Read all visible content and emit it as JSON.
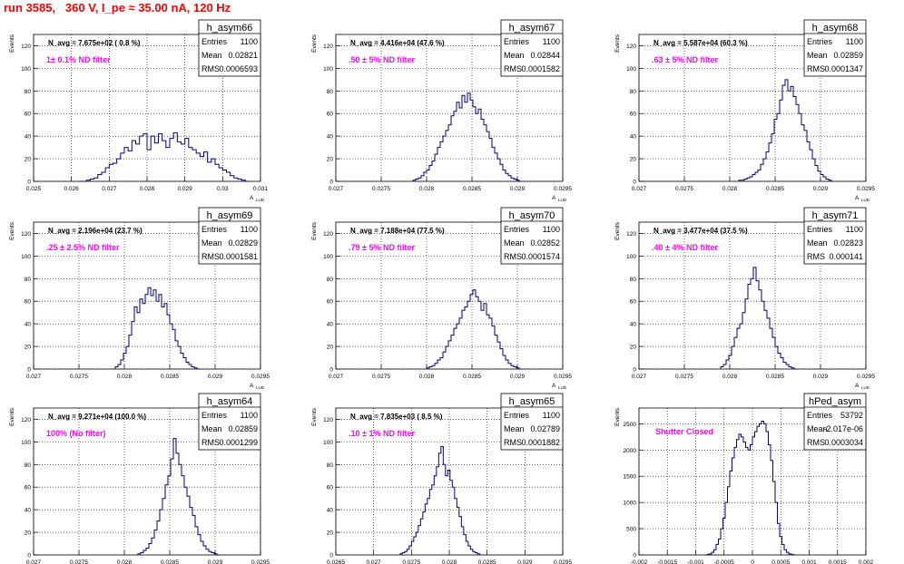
{
  "title": "run 3585,   360 V, I_pe ≈ 35.00 nA, 120 Hz",
  "colors": {
    "title": "#ff0000",
    "histogram": "#000080",
    "annotation": "#ff00ff",
    "grid": "#000000"
  },
  "stat_labels": {
    "entries": "Entries",
    "mean": "Mean",
    "rms": "RMS"
  },
  "axis_labels": {
    "y": "Events",
    "x": "A",
    "x_sub": "LUD"
  },
  "chart_data": [
    {
      "type": "bar",
      "name": "h_asym66",
      "navg": "N_avg = 7.675e+02 ( 0.8 %)",
      "filter": "1± 0.1% ND filter",
      "entries": "1100",
      "mean": "0.02821",
      "rms": "0.0006593",
      "xlim": [
        0.025,
        0.031
      ],
      "ylim": [
        0,
        130
      ],
      "xticks": [
        0.025,
        0.026,
        0.027,
        0.028,
        0.029,
        0.03,
        0.031
      ],
      "xticklabels": [
        "0.025",
        "0.026",
        "0.027",
        "0.028",
        "0.029",
        "0.03",
        "0.031"
      ],
      "yticks": [
        0,
        20,
        40,
        60,
        80,
        100,
        120
      ],
      "yticklabels": [
        "0",
        "20",
        "40",
        "60",
        "80",
        "100",
        "120"
      ],
      "bin_start": 0.0262,
      "bin_width": 0.0001,
      "values": [
        0,
        0,
        1,
        2,
        3,
        6,
        8,
        12,
        15,
        16,
        20,
        25,
        30,
        27,
        36,
        33,
        40,
        42,
        28,
        40,
        34,
        42,
        36,
        30,
        38,
        43,
        35,
        33,
        38,
        30,
        28,
        25,
        22,
        26,
        17,
        20,
        15,
        12,
        10,
        8,
        5,
        3,
        2,
        1,
        0
      ]
    },
    {
      "type": "bar",
      "name": "h_asym67",
      "navg": "N_avg = 4.416e+04 (47.6 %)",
      "filter": ".50 ± 5% ND filter",
      "entries": "1100",
      "mean": "0.02844",
      "rms": "0.0001582",
      "xlim": [
        0.027,
        0.0295
      ],
      "ylim": [
        0,
        130
      ],
      "xticks": [
        0.027,
        0.0275,
        0.028,
        0.0285,
        0.029,
        0.0295
      ],
      "xticklabels": [
        "0.027",
        "0.0275",
        "0.028",
        "0.0285",
        "0.029",
        "0.0295"
      ],
      "yticks": [
        0,
        20,
        40,
        60,
        80,
        100,
        120
      ],
      "yticklabels": [
        "0",
        "20",
        "40",
        "60",
        "80",
        "100",
        "120"
      ],
      "bin_start": 0.02785,
      "bin_width": 3e-05,
      "values": [
        1,
        2,
        3,
        5,
        8,
        10,
        14,
        18,
        24,
        30,
        35,
        40,
        45,
        50,
        58,
        62,
        70,
        65,
        76,
        70,
        78,
        72,
        66,
        60,
        64,
        55,
        50,
        44,
        38,
        30,
        25,
        20,
        15,
        10,
        7,
        5,
        3,
        2,
        1,
        0
      ]
    },
    {
      "type": "bar",
      "name": "h_asym68",
      "navg": "N_avg = 5.587e+04 (60.3 %)",
      "filter": ".63 ± 5% ND filter",
      "entries": "1100",
      "mean": "0.02859",
      "rms": "0.0001347",
      "xlim": [
        0.027,
        0.0295
      ],
      "ylim": [
        0,
        130
      ],
      "xticks": [
        0.027,
        0.0275,
        0.028,
        0.0285,
        0.029,
        0.0295
      ],
      "xticklabels": [
        "0.027",
        "0.0275",
        "0.028",
        "0.0285",
        "0.029",
        "0.0295"
      ],
      "yticks": [
        0,
        20,
        40,
        60,
        80,
        100,
        120
      ],
      "yticklabels": [
        "0",
        "20",
        "40",
        "60",
        "80",
        "100",
        "120"
      ],
      "bin_start": 0.0281,
      "bin_width": 3e-05,
      "values": [
        1,
        1,
        2,
        3,
        4,
        6,
        8,
        10,
        15,
        20,
        26,
        34,
        42,
        55,
        60,
        72,
        85,
        90,
        80,
        84,
        75,
        68,
        60,
        50,
        45,
        35,
        28,
        20,
        14,
        9,
        6,
        4,
        2,
        1,
        0
      ]
    },
    {
      "type": "bar",
      "name": "h_asym69",
      "navg": "N_avg = 2.196e+04 (23.7 %)",
      "filter": ".25 ± 2.5% ND filter",
      "entries": "1100",
      "mean": "0.02829",
      "rms": "0.0001581",
      "xlim": [
        0.027,
        0.0295
      ],
      "ylim": [
        0,
        130
      ],
      "xticks": [
        0.027,
        0.0275,
        0.028,
        0.0285,
        0.029,
        0.0295
      ],
      "xticklabels": [
        "0.027",
        "0.0275",
        "0.028",
        "0.0285",
        "0.029",
        "0.0295"
      ],
      "yticks": [
        0,
        20,
        40,
        60,
        80,
        100,
        120
      ],
      "yticklabels": [
        "0",
        "20",
        "40",
        "60",
        "80",
        "100",
        "120"
      ],
      "bin_start": 0.0279,
      "bin_width": 3e-05,
      "values": [
        2,
        4,
        8,
        14,
        20,
        30,
        42,
        55,
        50,
        62,
        58,
        66,
        72,
        65,
        70,
        60,
        66,
        55,
        58,
        48,
        40,
        35,
        25,
        20,
        14,
        10,
        6,
        4,
        2,
        1,
        0
      ]
    },
    {
      "type": "bar",
      "name": "h_asym70",
      "navg": "N_avg = 7.188e+04 (77.5 %)",
      "filter": ".79 ± 5% ND filter",
      "entries": "1100",
      "mean": "0.02852",
      "rms": "0.0001574",
      "xlim": [
        0.027,
        0.0295
      ],
      "ylim": [
        0,
        130
      ],
      "xticks": [
        0.027,
        0.0275,
        0.028,
        0.0285,
        0.029,
        0.0295
      ],
      "xticklabels": [
        "0.027",
        "0.0275",
        "0.028",
        "0.0285",
        "0.029",
        "0.0295"
      ],
      "yticks": [
        0,
        20,
        40,
        60,
        80,
        100,
        120
      ],
      "yticklabels": [
        "0",
        "20",
        "40",
        "60",
        "80",
        "100",
        "120"
      ],
      "bin_start": 0.028,
      "bin_width": 3e-05,
      "values": [
        1,
        2,
        3,
        5,
        8,
        10,
        15,
        20,
        25,
        30,
        36,
        40,
        45,
        52,
        55,
        60,
        66,
        70,
        64,
        60,
        52,
        58,
        48,
        45,
        38,
        30,
        24,
        18,
        12,
        8,
        5,
        3,
        2,
        1,
        0
      ]
    },
    {
      "type": "bar",
      "name": "h_asym71",
      "navg": "N_avg = 3.477e+04 (37.5 %)",
      "filter": ".40 ± 4% ND filter",
      "entries": "1100",
      "mean": "0.02823",
      "rms": "0.000141",
      "xlim": [
        0.027,
        0.0295
      ],
      "ylim": [
        0,
        130
      ],
      "xticks": [
        0.027,
        0.0275,
        0.028,
        0.0285,
        0.029,
        0.0295
      ],
      "xticklabels": [
        "0.027",
        "0.0275",
        "0.028",
        "0.0285",
        "0.029",
        "0.0295"
      ],
      "yticks": [
        0,
        20,
        40,
        60,
        80,
        100,
        120
      ],
      "yticklabels": [
        "0",
        "20",
        "40",
        "60",
        "80",
        "100",
        "120"
      ],
      "bin_start": 0.0279,
      "bin_width": 3e-05,
      "values": [
        2,
        4,
        8,
        12,
        20,
        28,
        36,
        40,
        50,
        62,
        75,
        80,
        90,
        78,
        70,
        60,
        52,
        45,
        36,
        28,
        20,
        14,
        10,
        6,
        4,
        2,
        1,
        0
      ]
    },
    {
      "type": "bar",
      "name": "h_asym64",
      "navg": "N_avg = 9.271e+04 (100.0 %)",
      "filter": "100% (No filter)",
      "entries": "1100",
      "mean": "0.02859",
      "rms": "0.0001299",
      "xlim": [
        0.027,
        0.0295
      ],
      "ylim": [
        0,
        130
      ],
      "xticks": [
        0.027,
        0.0275,
        0.028,
        0.0285,
        0.029,
        0.0295
      ],
      "xticklabels": [
        "0.027",
        "0.0275",
        "0.028",
        "0.0285",
        "0.029",
        "0.0295"
      ],
      "yticks": [
        0,
        20,
        40,
        60,
        80,
        100,
        120
      ],
      "yticklabels": [
        "0",
        "20",
        "40",
        "60",
        "80",
        "100",
        "120"
      ],
      "bin_start": 0.02815,
      "bin_width": 3e-05,
      "values": [
        1,
        2,
        4,
        6,
        10,
        15,
        22,
        30,
        40,
        50,
        62,
        70,
        85,
        103,
        90,
        80,
        70,
        60,
        52,
        42,
        35,
        25,
        18,
        12,
        8,
        5,
        3,
        2,
        1,
        0
      ]
    },
    {
      "type": "bar",
      "name": "h_asym65",
      "navg": "N_avg = 7.835e+03 ( 8.5 %)",
      "filter": ".10 ± 1% ND filter",
      "entries": "1100",
      "mean": "0.02789",
      "rms": "0.0001882",
      "xlim": [
        0.0265,
        0.0295
      ],
      "ylim": [
        0,
        130
      ],
      "xticks": [
        0.0265,
        0.027,
        0.0275,
        0.028,
        0.0285,
        0.029,
        0.0295
      ],
      "xticklabels": [
        "0.0265",
        "0.027",
        "0.0275",
        "0.028",
        "0.0285",
        "0.029",
        "0.0295"
      ],
      "yticks": [
        0,
        20,
        40,
        60,
        80,
        100,
        120
      ],
      "yticklabels": [
        "0",
        "20",
        "40",
        "60",
        "80",
        "100",
        "120"
      ],
      "bin_start": 0.02735,
      "bin_width": 3e-05,
      "values": [
        1,
        2,
        3,
        5,
        8,
        12,
        16,
        20,
        26,
        32,
        38,
        45,
        50,
        58,
        62,
        70,
        78,
        90,
        96,
        80,
        70,
        75,
        66,
        60,
        50,
        42,
        34,
        25,
        18,
        12,
        8,
        5,
        3,
        2,
        1,
        0
      ]
    },
    {
      "type": "bar",
      "name": "hPed_asym",
      "navg": "",
      "filter": "Shutter Closed",
      "entries": "53792",
      "mean": "-2.017e-06",
      "rms": "0.0003034",
      "xlim": [
        -0.002,
        0.002
      ],
      "ylim": [
        0,
        2800
      ],
      "xticks": [
        -0.002,
        -0.0015,
        -0.001,
        -0.0005,
        0,
        0.0005,
        0.001,
        0.0015,
        0.002
      ],
      "xticklabels": [
        "-0.002",
        "-0.0015",
        "-0.001",
        "-0.0005",
        "0",
        "0.0005",
        "0.001",
        "0.0015",
        "0.002"
      ],
      "yticks": [
        0,
        500,
        1000,
        1500,
        2000,
        2500
      ],
      "yticklabels": [
        "0",
        "500",
        "1000",
        "1500",
        "2000",
        "2500"
      ],
      "bin_start": -0.0008,
      "bin_width": 4e-05,
      "values": [
        10,
        20,
        50,
        100,
        200,
        300,
        500,
        700,
        1000,
        1300,
        1600,
        1850,
        2050,
        2200,
        2300,
        2250,
        2150,
        2050,
        2000,
        2100,
        2250,
        2350,
        2450,
        2500,
        2550,
        2500,
        2350,
        2100,
        1800,
        1400,
        1000,
        600,
        350,
        200,
        100,
        50,
        20,
        10,
        0
      ]
    }
  ]
}
